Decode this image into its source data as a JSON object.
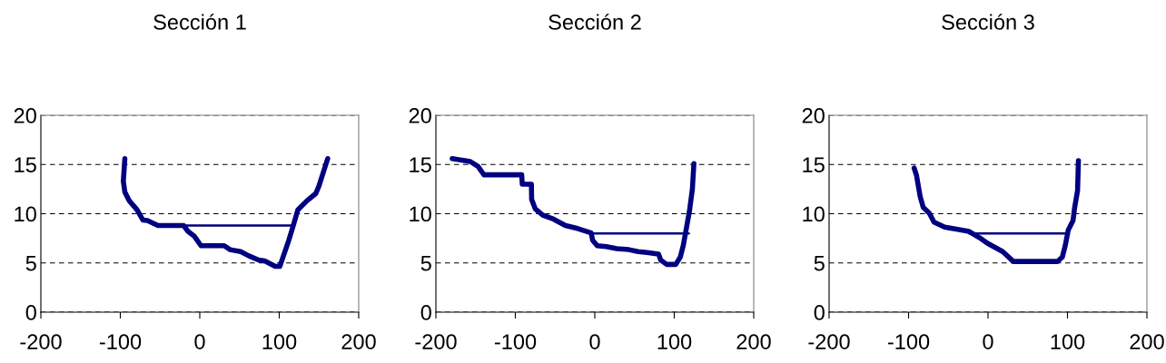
{
  "chart_data": [
    {
      "type": "line",
      "title": "Sección 1",
      "xlim": [
        -200,
        200
      ],
      "xticks": [
        -200,
        -100,
        0,
        100,
        200
      ],
      "ylim": [
        0,
        20
      ],
      "yticks": [
        0,
        5,
        10,
        15,
        20
      ],
      "grid": "y",
      "series": [
        {
          "color": "#000080",
          "x": [
            -94.3,
            -96.2,
            -94.3,
            -88.6,
            -79,
            -71.5,
            -66,
            -52.6,
            -20.4,
            -14.8,
            -7.2,
            1.5,
            30.7,
            38.2,
            51.5,
            61,
            74,
            81.7,
            95,
            100.7,
            112,
            117.7,
            123.4,
            134.7,
            146,
            149.9,
            161
          ],
          "values": [
            15.6,
            13.3,
            12.2,
            11.3,
            10.4,
            9.35,
            9.3,
            8.8,
            8.8,
            8.2,
            7.75,
            6.75,
            6.75,
            6.35,
            6.15,
            5.75,
            5.3,
            5.2,
            4.65,
            4.65,
            7.3,
            8.8,
            10.4,
            11.3,
            12.05,
            12.8,
            15.6
          ]
        },
        {
          "color": "#000080",
          "x": [
            -20,
            117
          ],
          "values": [
            8.8,
            8.8
          ]
        }
      ]
    },
    {
      "type": "line",
      "title": "Sección 2",
      "xlim": [
        -200,
        200
      ],
      "xticks": [
        -200,
        -100,
        0,
        100,
        200
      ],
      "ylim": [
        0,
        20
      ],
      "yticks": [
        0,
        5,
        10,
        15,
        20
      ],
      "grid": "y",
      "series": [
        {
          "color": "#000080",
          "x": [
            -179.5,
            -156.7,
            -147,
            -139.5,
            -92,
            -91.3,
            -79.8,
            -79.5,
            -75,
            -65.4,
            -52,
            -37,
            -21.7,
            -4.6,
            -2.7,
            3,
            14.4,
            27.8,
            43,
            54.4,
            65.8,
            80.2,
            82.9,
            90.5,
            101.9,
            107.6,
            111.4,
            119,
            122.8,
            124.7
          ],
          "values": [
            15.6,
            15.3,
            14.8,
            13.95,
            13.95,
            13.0,
            13.0,
            11.45,
            10.5,
            9.85,
            9.45,
            8.8,
            8.5,
            8.05,
            7.3,
            6.75,
            6.65,
            6.45,
            6.35,
            6.15,
            6.05,
            5.9,
            5.3,
            4.85,
            4.85,
            5.6,
            6.8,
            10.2,
            12.5,
            15.1
          ]
        },
        {
          "color": "#000080",
          "x": [
            -4.6,
            118.3
          ],
          "values": [
            8.0,
            8.0
          ]
        }
      ]
    },
    {
      "type": "line",
      "title": "Sección 3",
      "xlim": [
        -200,
        200
      ],
      "xticks": [
        -200,
        -100,
        0,
        100,
        200
      ],
      "ylim": [
        0,
        20
      ],
      "yticks": [
        0,
        5,
        10,
        15,
        20
      ],
      "grid": "y",
      "series": [
        {
          "color": "#000080",
          "x": [
            -93,
            -90,
            -85.4,
            -81.5,
            -73.8,
            -68,
            -54.6,
            -23.8,
            -8.5,
            -0.8,
            18.5,
            31.9,
            87.7,
            93.5,
            97.3,
            101,
            107,
            108.8,
            112.7,
            113.8
          ],
          "values": [
            14.65,
            13.9,
            11.75,
            10.65,
            10.05,
            9.15,
            8.65,
            8.2,
            7.45,
            7.0,
            6.15,
            5.15,
            5.15,
            5.6,
            6.8,
            8.35,
            9.3,
            10.5,
            12.35,
            15.4
          ]
        },
        {
          "color": "#000080",
          "x": [
            -23.8,
            101
          ],
          "values": [
            8.0,
            8.0
          ]
        }
      ]
    }
  ]
}
